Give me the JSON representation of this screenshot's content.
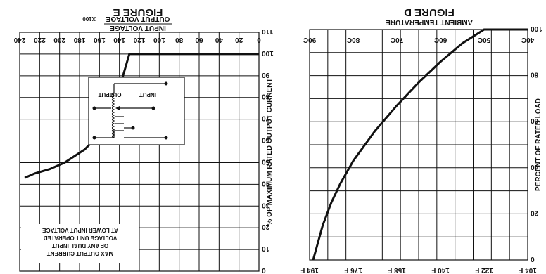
{
  "chart_data": [
    {
      "type": "line",
      "title": "FIGURE D",
      "xlabel": "AMBIENT TEMPERATURE",
      "ylabel": "PERCENT OF RATED LOAD",
      "x_ticks_c": [
        "40C",
        "50C",
        "60C",
        "70C",
        "80C",
        "90C"
      ],
      "x_ticks_f": [
        "104 F",
        "122 F",
        "140 F",
        "158 F",
        "176 F",
        "194 F"
      ],
      "y_ticks": [
        "0",
        "20",
        "40",
        "60",
        "80",
        "100"
      ],
      "xlim": [
        40,
        90
      ],
      "ylim": [
        0,
        100
      ],
      "series": [
        {
          "x": [
            40,
            50,
            55,
            60,
            65,
            70,
            75,
            80,
            83,
            85,
            87,
            89.2
          ],
          "values": [
            100,
            100,
            94,
            86,
            77,
            67,
            56,
            43,
            33,
            25,
            15,
            0
          ]
        }
      ]
    },
    {
      "type": "line",
      "title": "FIGURE E",
      "xlabel_top": "INPUT VOLTAGE",
      "xlabel_bottom": "OUTPUT VOLTAGE",
      "x_multiplier": "X100",
      "ylabel": "% OF MAXIMUM RATED OUTPUT CURRENT",
      "x_ticks": [
        "0",
        "20",
        "40",
        "60",
        "80",
        "100",
        "120",
        "140",
        "160",
        "180",
        "200",
        "220",
        "240"
      ],
      "y_ticks": [
        "0",
        "10",
        "20",
        "30",
        "40",
        "50",
        "60",
        "70",
        "80",
        "90",
        "100",
        "110"
      ],
      "xlim": [
        0,
        240
      ],
      "ylim": [
        0,
        110
      ],
      "series": [
        {
          "x": [
            0,
            130,
            137,
            143,
            150,
            160,
            175,
            195,
            210,
            225,
            235
          ],
          "values": [
            100,
            100,
            89,
            80,
            70,
            63,
            56,
            50,
            47,
            45,
            43
          ]
        }
      ],
      "annotation": [
        "MAX OUTPUT CURRENT",
        "OF ANY DUAL INPUT",
        "VOLTAGE UNIT OPERATED",
        "AT LOWER INPUT VOLTAGE"
      ],
      "schematic_labels": [
        "INPUT",
        "OUTPUT"
      ]
    }
  ]
}
